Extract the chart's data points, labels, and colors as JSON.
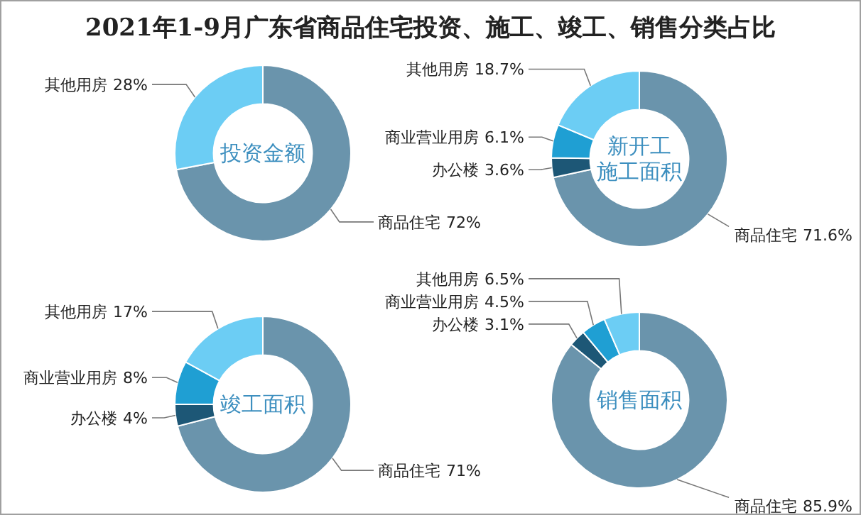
{
  "chart_data": [
    {
      "type": "donut",
      "title": "2021年1-9月广东省商品住宅投资、施工、竣工、销售分类占比",
      "subtitle": "投资金额",
      "categories": [
        "商品住宅",
        "其他用房"
      ],
      "values": [
        72,
        28
      ],
      "value_labels": [
        "72%",
        "28%"
      ],
      "colors": [
        "#6a94ac",
        "#6ccdf4"
      ]
    },
    {
      "type": "donut",
      "subtitle": "新开工施工面积",
      "categories": [
        "商品住宅",
        "办公楼",
        "商业营业用房",
        "其他用房"
      ],
      "values": [
        71.6,
        3.6,
        6.1,
        18.7
      ],
      "value_labels": [
        "71.6%",
        "3.6%",
        "6.1%",
        "18.7%"
      ],
      "colors": [
        "#6a94ac",
        "#1d5776",
        "#1f9fd3",
        "#6ccdf4"
      ]
    },
    {
      "type": "donut",
      "subtitle": "竣工面积",
      "categories": [
        "商品住宅",
        "办公楼",
        "商业营业用房",
        "其他用房"
      ],
      "values": [
        71,
        4,
        8,
        17
      ],
      "value_labels": [
        "71%",
        "4%",
        "8%",
        "17%"
      ],
      "colors": [
        "#6a94ac",
        "#1d5776",
        "#1f9fd3",
        "#6ccdf4"
      ]
    },
    {
      "type": "donut",
      "subtitle": "销售面积",
      "categories": [
        "商品住宅",
        "办公楼",
        "商业营业用房",
        "其他用房"
      ],
      "values": [
        85.9,
        3.1,
        4.5,
        6.5
      ],
      "value_labels": [
        "85.9%",
        "3.1%",
        "4.5%",
        "6.5%"
      ],
      "colors": [
        "#6a94ac",
        "#1d5776",
        "#1f9fd3",
        "#6ccdf4"
      ]
    }
  ]
}
